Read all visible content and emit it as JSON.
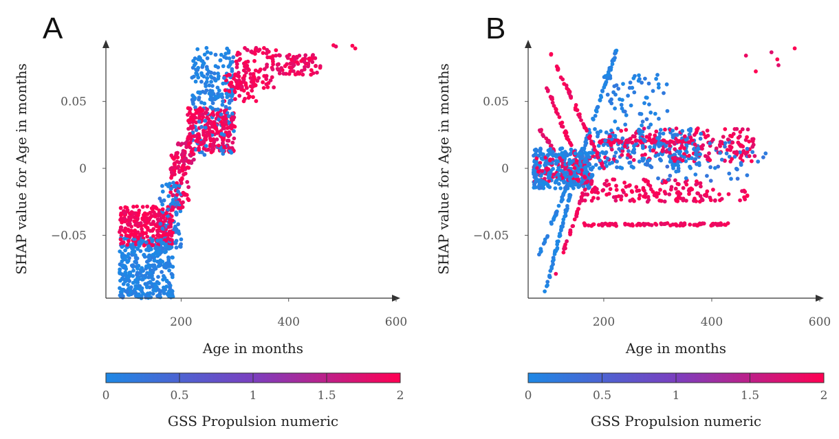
{
  "chart_data": [
    {
      "panel": "A",
      "type": "scatter",
      "xlabel": "Age in months",
      "ylabel": "SHAP value for Age in months",
      "xlim": [
        60,
        600
      ],
      "ylim": [
        -0.097,
        0.095
      ],
      "xticks": [
        200,
        400,
        600
      ],
      "xtick_labels": [
        "200",
        "400",
        "600"
      ],
      "yticks": [
        -0.05,
        0,
        0.05
      ],
      "ytick_labels": [
        "−0.05",
        "0",
        "0.05"
      ],
      "color_feature": "GSS Propulsion numeric",
      "clusters": [
        {
          "x": [
            85,
            185
          ],
          "y": [
            -0.097,
            -0.052
          ],
          "c": 0.05,
          "n": 380
        },
        {
          "x": [
            85,
            185
          ],
          "y": [
            -0.058,
            -0.028
          ],
          "c": 1.95,
          "n": 260
        },
        {
          "x": [
            160,
            200
          ],
          "y": [
            -0.06,
            -0.01
          ],
          "c": 0.1,
          "n": 90
        },
        {
          "x": [
            180,
            215
          ],
          "y": [
            -0.03,
            0.01
          ],
          "c": 1.9,
          "n": 80
        },
        {
          "x": [
            190,
            225
          ],
          "y": [
            0.0,
            0.02
          ],
          "c": 1.8,
          "n": 40
        },
        {
          "x": [
            210,
            300
          ],
          "y": [
            0.012,
            0.045
          ],
          "c": 1.9,
          "n": 260
        },
        {
          "x": [
            220,
            300
          ],
          "y": [
            0.01,
            0.06
          ],
          "c": 0.1,
          "n": 90
        },
        {
          "x": [
            220,
            300
          ],
          "y": [
            0.05,
            0.09
          ],
          "c": 0.05,
          "n": 110
        },
        {
          "x": [
            280,
            340
          ],
          "y": [
            0.05,
            0.07
          ],
          "c": 1.95,
          "n": 60
        },
        {
          "x": [
            300,
            380
          ],
          "y": [
            0.06,
            0.09
          ],
          "c": 1.9,
          "n": 90
        },
        {
          "x": [
            380,
            460
          ],
          "y": [
            0.07,
            0.085
          ],
          "c": 1.9,
          "n": 70
        },
        {
          "x": [
            460,
            570
          ],
          "y": [
            0.088,
            0.092
          ],
          "c": 1.95,
          "n": 4
        }
      ]
    },
    {
      "panel": "B",
      "type": "scatter",
      "xlabel": "Age in months",
      "ylabel": "SHAP value for Age in months",
      "xlim": [
        60,
        600
      ],
      "ylim": [
        -0.097,
        0.095
      ],
      "xticks": [
        200,
        400,
        600
      ],
      "xtick_labels": [
        "200",
        "400",
        "600"
      ],
      "yticks": [
        -0.05,
        0,
        0.05
      ],
      "ytick_labels": [
        "−0.05",
        "0",
        "0.05"
      ],
      "color_feature": "GSS Propulsion numeric",
      "clusters": [
        {
          "x": [
            70,
            180
          ],
          "y": [
            -0.015,
            0.015
          ],
          "c": 0.05,
          "n": 320
        },
        {
          "x": [
            70,
            180
          ],
          "y": [
            -0.01,
            0.01
          ],
          "c": 1.9,
          "n": 90
        },
        {
          "x": [
            180,
            380
          ],
          "y": [
            0.0,
            0.03
          ],
          "c": 0.1,
          "n": 200
        },
        {
          "x": [
            200,
            480
          ],
          "y": [
            0.005,
            0.03
          ],
          "c": 1.9,
          "n": 200
        },
        {
          "x": [
            160,
            380
          ],
          "y": [
            -0.025,
            -0.008
          ],
          "c": 1.9,
          "n": 120
        },
        {
          "x": [
            200,
            320
          ],
          "y": [
            0.03,
            0.07
          ],
          "c": 0.1,
          "n": 60
        },
        {
          "x": [
            300,
            500
          ],
          "y": [
            -0.01,
            0.02
          ],
          "c": 0.2,
          "n": 60
        },
        {
          "x": [
            300,
            470
          ],
          "y": [
            -0.025,
            -0.015
          ],
          "c": 1.9,
          "n": 40
        },
        {
          "x": [
            420,
            560
          ],
          "y": [
            0.07,
            0.09
          ],
          "c": 1.9,
          "n": 6
        }
      ],
      "lines": [
        {
          "x": [
            100,
            200
          ],
          "y": [
            0.088,
            0.0
          ],
          "c": 1.9,
          "n": 60
        },
        {
          "x": [
            95,
            165
          ],
          "y": [
            0.06,
            -0.008
          ],
          "c": 1.9,
          "n": 50
        },
        {
          "x": [
            80,
            150
          ],
          "y": [
            0.03,
            -0.01
          ],
          "c": 1.8,
          "n": 35
        },
        {
          "x": [
            90,
            150
          ],
          "y": [
            -0.095,
            0.0
          ],
          "c": 0.05,
          "n": 60
        },
        {
          "x": [
            80,
            140
          ],
          "y": [
            -0.065,
            -0.005
          ],
          "c": 0.1,
          "n": 50
        },
        {
          "x": [
            150,
            225
          ],
          "y": [
            0.0,
            0.09
          ],
          "c": 0.05,
          "n": 60
        },
        {
          "x": [
            110,
            170
          ],
          "y": [
            -0.08,
            -0.01
          ],
          "c": 1.9,
          "n": 35
        },
        {
          "x": [
            160,
            430
          ],
          "y": [
            -0.042,
            -0.042
          ],
          "c": 1.9,
          "n": 90
        },
        {
          "x": [
            190,
            360
          ],
          "y": [
            0.02,
            0.02
          ],
          "c": 1.9,
          "n": 50
        }
      ]
    }
  ],
  "panels": [
    {
      "letter": "A",
      "xlabel": "Age in months",
      "ylabel": "SHAP value for Age in months",
      "colorbar_title": "GSS Propulsion numeric",
      "colorbar_ticks": [
        "0",
        "0.5",
        "1",
        "1.5",
        "2"
      ]
    },
    {
      "letter": "B",
      "xlabel": "Age in months",
      "ylabel": "SHAP value for Age in months",
      "colorbar_title": "GSS Propulsion numeric",
      "colorbar_ticks": [
        "0",
        "0.5",
        "1",
        "1.5",
        "2"
      ]
    }
  ],
  "colors": {
    "low": "#1e88e5",
    "mid": "#7b3fbf",
    "high": "#ff0052"
  }
}
